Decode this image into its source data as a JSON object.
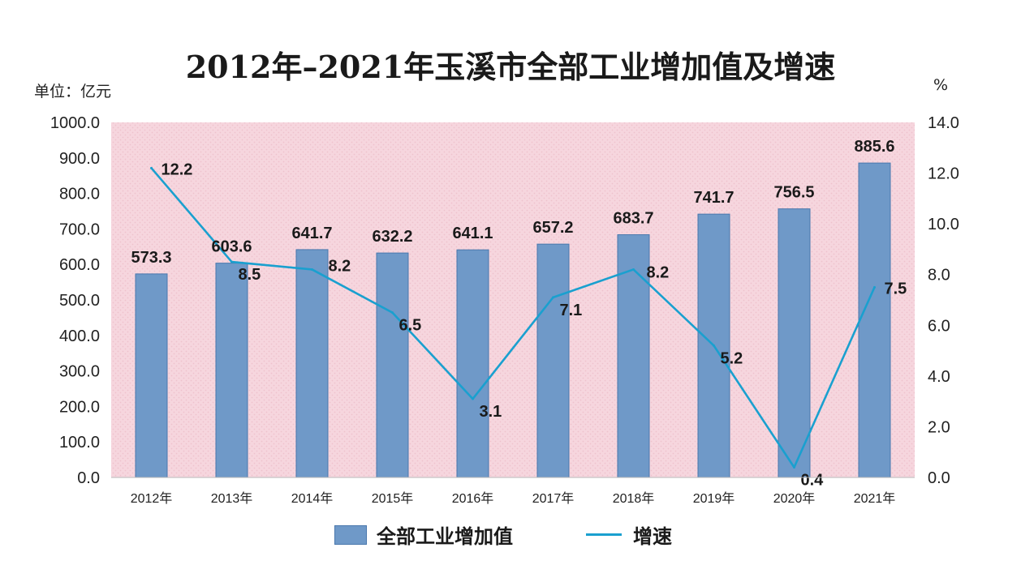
{
  "chart_data": {
    "type": "bar",
    "title": "2012年–2021年玉溪市全部工业增加值及增速",
    "y_left_unit": "单位：亿元",
    "y_right_unit": "%",
    "categories": [
      "2012年",
      "2013年",
      "2014年",
      "2015年",
      "2016年",
      "2017年",
      "2018年",
      "2019年",
      "2020年",
      "2021年"
    ],
    "series": [
      {
        "name": "全部工业增加值",
        "type": "bar",
        "axis": "left",
        "values": [
          573.3,
          603.6,
          641.7,
          632.2,
          641.1,
          657.2,
          683.7,
          741.7,
          756.5,
          885.6
        ],
        "labels": [
          "573.3",
          "603.6",
          "641.7",
          "632.2",
          "641.1",
          "657.2",
          "683.7",
          "741.7",
          "756.5",
          "885.6"
        ],
        "color": "#6f99c8"
      },
      {
        "name": "增速",
        "type": "line",
        "axis": "right",
        "values": [
          12.2,
          8.5,
          8.2,
          6.5,
          3.1,
          7.1,
          8.2,
          5.2,
          0.4,
          7.5
        ],
        "labels": [
          "12.2",
          "8.5",
          "8.2",
          "6.5",
          "3.1",
          "7.1",
          "8.2",
          "5.2",
          "0.4",
          "7.5"
        ],
        "color": "#1aa0cf"
      }
    ],
    "ylim_left": [
      0,
      1000
    ],
    "ylim_right": [
      0,
      14
    ],
    "yticks_left": [
      "0.0",
      "100.0",
      "200.0",
      "300.0",
      "400.0",
      "500.0",
      "600.0",
      "700.0",
      "800.0",
      "900.0",
      "1000.0"
    ],
    "yticks_right": [
      "0.0",
      "2.0",
      "4.0",
      "6.0",
      "8.0",
      "10.0",
      "12.0",
      "14.0"
    ],
    "plot_background": "#f6d6de",
    "legend_position": "bottom"
  }
}
